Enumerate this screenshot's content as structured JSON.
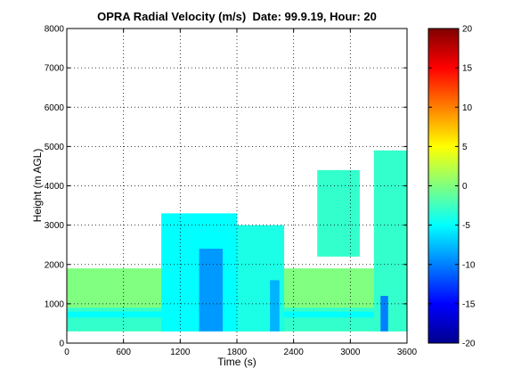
{
  "chart_data": {
    "type": "heatmap",
    "title": "OPRA Radial Velocity (m/s)  Date: 99.9.19, Hour: 20",
    "xlabel": "Time (s)",
    "ylabel": "Height (m AGL)",
    "xlim": [
      0,
      3600
    ],
    "ylim": [
      0,
      8000
    ],
    "xticks": [
      0,
      600,
      1200,
      1800,
      2400,
      3000,
      3600
    ],
    "xtick_labels": [
      "0",
      "600",
      "1200",
      "1800",
      "2400",
      "3000",
      "3600"
    ],
    "yticks": [
      0,
      1000,
      2000,
      3000,
      4000,
      5000,
      6000,
      7000,
      8000
    ],
    "ytick_labels": [
      "0",
      "1000",
      "2000",
      "3000",
      "4000",
      "5000",
      "6000",
      "7000",
      "8000"
    ],
    "grid": true,
    "colorbar": {
      "range": [
        -20,
        20
      ],
      "ticks": [
        -20,
        -15,
        -10,
        -5,
        0,
        5,
        10,
        15,
        20
      ],
      "tick_labels": [
        "-20",
        "-15",
        "-10",
        "-5",
        "0",
        "5",
        "10",
        "15",
        "20"
      ],
      "colormap": "jet"
    },
    "regions": [
      {
        "name": "background",
        "x": [
          0,
          3600
        ],
        "y": [
          300,
          1900
        ],
        "value": 0
      },
      {
        "name": "low-layer",
        "x": [
          0,
          3600
        ],
        "y": [
          300,
          900
        ],
        "value": -3
      },
      {
        "name": "band-700",
        "x": [
          0,
          3600
        ],
        "y": [
          650,
          800
        ],
        "value": -5
      },
      {
        "name": "updraft-1",
        "x": [
          1000,
          1800
        ],
        "y": [
          300,
          3300
        ],
        "value": -5
      },
      {
        "name": "updraft-2",
        "x": [
          1800,
          2300
        ],
        "y": [
          300,
          3000
        ],
        "value": -4
      },
      {
        "name": "plume",
        "x": [
          2650,
          3100
        ],
        "y": [
          2200,
          4400
        ],
        "value": -3
      },
      {
        "name": "plume-right",
        "x": [
          3250,
          3600
        ],
        "y": [
          300,
          4900
        ],
        "value": -3
      },
      {
        "name": "streak-a",
        "x": [
          1400,
          1650
        ],
        "y": [
          300,
          2400
        ],
        "value": -9
      },
      {
        "name": "streak-b",
        "x": [
          2150,
          2250
        ],
        "y": [
          300,
          1600
        ],
        "value": -8
      },
      {
        "name": "streak-c",
        "x": [
          3320,
          3400
        ],
        "y": [
          300,
          1200
        ],
        "value": -10
      }
    ]
  }
}
